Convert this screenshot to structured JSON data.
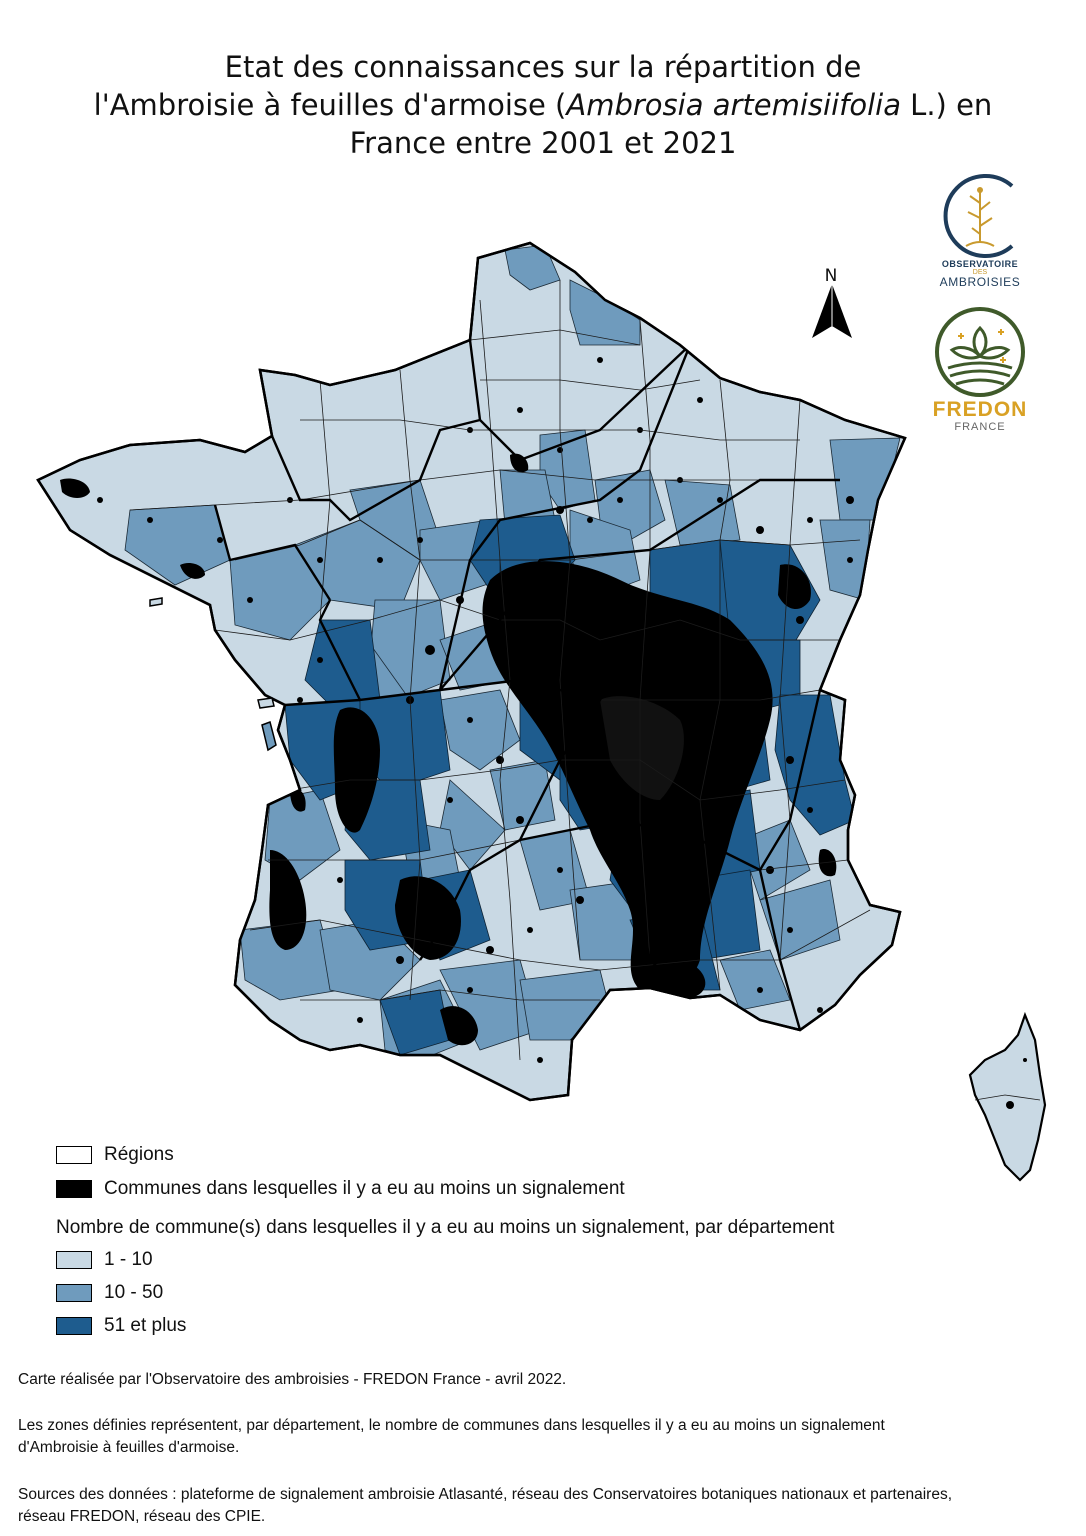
{
  "title": {
    "line1": "Etat des connaissances sur la répartition de",
    "line2_pre": "l'Ambroisie à feuilles d'armoise (",
    "line2_italic": "Ambrosia artemisiifolia",
    "line2_post": " L.) en",
    "line3": "France entre 2001 et 2021"
  },
  "north_label": "N",
  "logos": {
    "observatoire_line1": "OBSERVATOIRE",
    "observatoire_line2": "DES",
    "observatoire_line3": "AMBROISIES",
    "fredon_line1": "FREDON",
    "fredon_line2": "FRANCE"
  },
  "legend": {
    "regions_label": "Régions",
    "communes_label": "Communes dans lesquelles il y a eu au moins un signalement",
    "heading": "Nombre de commune(s) dans lesquelles il y a eu au moins un signalement, par département",
    "classes": [
      {
        "label": "1 - 10",
        "color": "#c9d9e4"
      },
      {
        "label": "10 - 50",
        "color": "#6f9bbd"
      },
      {
        "label": "51 et plus",
        "color": "#1e5c8e"
      }
    ],
    "regions_color": "#ffffff",
    "communes_color": "#000000"
  },
  "footer": {
    "credit": "Carte réalisée par l'Observatoire des ambroisies - FREDON France - avril 2022.",
    "note_line1": "Les zones définies représentent, par département, le nombre de communes dans lesquelles il y a eu au moins un signalement",
    "note_line2": "d'Ambroisie à feuilles d'armoise.",
    "sources_line1": "Sources des données : plateforme de signalement ambroisie Atlasanté, réseau des Conservatoires botaniques nationaux et partenaires,",
    "sources_line2": "réseau FREDON, réseau des CPIE."
  }
}
